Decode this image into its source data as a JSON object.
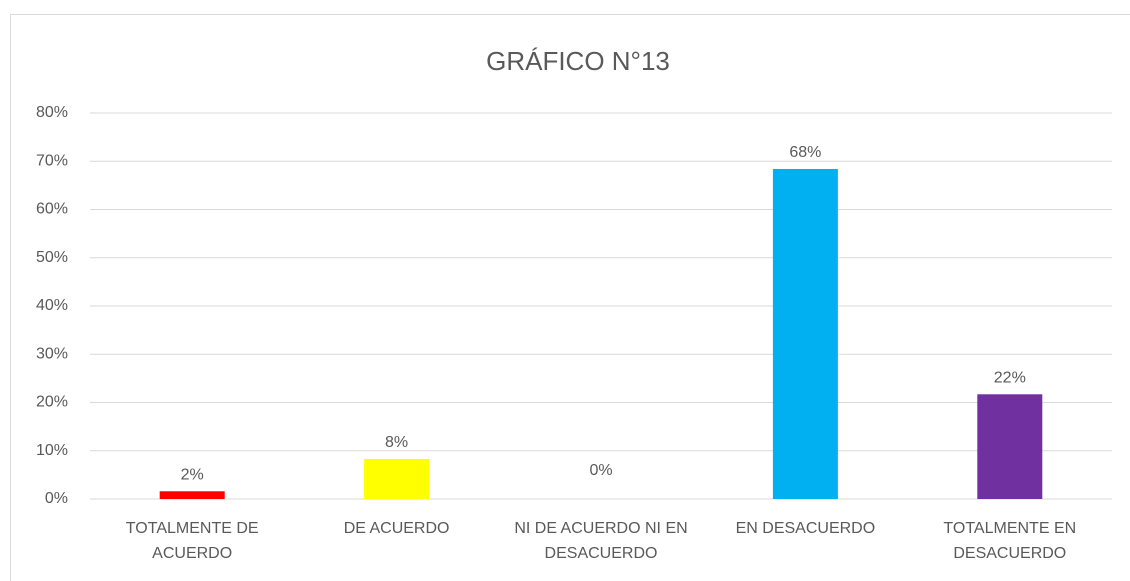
{
  "chart_data": {
    "type": "bar",
    "title": "GRÁFICO N°13",
    "categories": [
      "TOTALMENTE DE ACUERDO",
      "DE ACUERDO",
      "NI DE ACUERDO NI EN DESACUERDO",
      "EN DESACUERDO",
      "TOTALMENTE EN DESACUERDO"
    ],
    "values": [
      1.6,
      8.3,
      0,
      68.4,
      21.7
    ],
    "value_labels": [
      "2%",
      "8%",
      "0%",
      "68%",
      "22%"
    ],
    "colors": [
      "#ff0000",
      "#ffff00",
      "#a5a5a5",
      "#00b0f0",
      "#7030a0"
    ],
    "ylim": [
      0,
      80
    ],
    "yticks": [
      {
        "value": 0,
        "label": "0%"
      },
      {
        "value": 10,
        "label": "10%"
      },
      {
        "value": 20,
        "label": "20%"
      },
      {
        "value": 30,
        "label": "30%"
      },
      {
        "value": 40,
        "label": "40%"
      },
      {
        "value": 50,
        "label": "50%"
      },
      {
        "value": 60,
        "label": "60%"
      },
      {
        "value": 70,
        "label": "70%"
      },
      {
        "value": 80,
        "label": "80%"
      }
    ],
    "grid": true
  }
}
